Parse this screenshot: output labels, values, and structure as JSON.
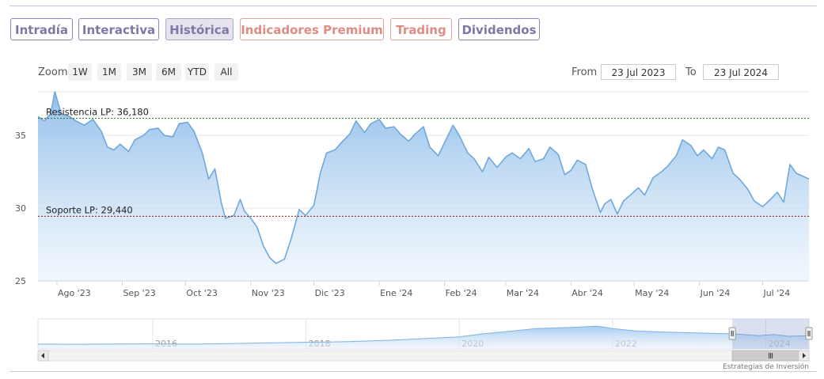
{
  "tabs": [
    {
      "label": "Intradía",
      "active": false,
      "premium": false
    },
    {
      "label": "Interactiva",
      "active": false,
      "premium": false
    },
    {
      "label": "Histórica",
      "active": true,
      "premium": false
    },
    {
      "label": "Indicadores Premium",
      "active": false,
      "premium": true
    },
    {
      "label": "Trading",
      "active": false,
      "premium": true
    },
    {
      "label": "Dividendos",
      "active": false,
      "premium": false
    }
  ],
  "toolbar": {
    "zoom_label": "Zoom",
    "zoom_buttons": [
      "1W",
      "1M",
      "3M",
      "6M",
      "YTD",
      "All"
    ],
    "from_label": "From",
    "from_value": "23 Jul 2023",
    "to_label": "To",
    "to_value": "23 Jul 2024"
  },
  "credits": "Estrategias de Inversión",
  "colors": {
    "line": "#6fa8dc",
    "area_top": "#8dbce8",
    "resistance": "#2e7d2e",
    "support": "#8b1a1a",
    "tab_border": "#8b86b8",
    "premium": "#e08c84"
  },
  "chart_data": {
    "type": "area",
    "title": "",
    "xlabel": "",
    "ylabel": "",
    "x_range": [
      "2023-07-23",
      "2024-07-23"
    ],
    "ylim": [
      25,
      38
    ],
    "y_ticks": [
      25,
      30,
      35
    ],
    "x_ticks": [
      {
        "date": "2023-08-01",
        "label": "Ago '23"
      },
      {
        "date": "2023-09-01",
        "label": "Sep '23"
      },
      {
        "date": "2023-10-01",
        "label": "Oct '23"
      },
      {
        "date": "2023-11-01",
        "label": "Nov '23"
      },
      {
        "date": "2023-12-01",
        "label": "Dic '23"
      },
      {
        "date": "2024-01-01",
        "label": "Ene '24"
      },
      {
        "date": "2024-02-01",
        "label": "Feb '24"
      },
      {
        "date": "2024-03-01",
        "label": "Mar '24"
      },
      {
        "date": "2024-04-01",
        "label": "Abr '24"
      },
      {
        "date": "2024-05-01",
        "label": "May '24"
      },
      {
        "date": "2024-06-01",
        "label": "Jun '24"
      },
      {
        "date": "2024-07-01",
        "label": "Jul '24"
      }
    ],
    "grid": true,
    "levels": [
      {
        "label": "Resistencia LP: 36,180",
        "value": 36.18,
        "style": "dashed",
        "color": "#2e7d2e"
      },
      {
        "label": "Soporte LP: 29,440",
        "value": 29.44,
        "style": "dashed",
        "color": "#8b1a1a"
      }
    ],
    "series": [
      {
        "values": [
          [
            "2023-07-23",
            36.3
          ],
          [
            "2023-07-26",
            36.0
          ],
          [
            "2023-07-29",
            36.5
          ],
          [
            "2023-07-31",
            38.0
          ],
          [
            "2023-08-03",
            36.5
          ],
          [
            "2023-08-07",
            36.3
          ],
          [
            "2023-08-10",
            36.0
          ],
          [
            "2023-08-14",
            35.7
          ],
          [
            "2023-08-18",
            36.1
          ],
          [
            "2023-08-22",
            35.3
          ],
          [
            "2023-08-25",
            34.2
          ],
          [
            "2023-08-28",
            34.0
          ],
          [
            "2023-08-31",
            34.4
          ],
          [
            "2023-09-04",
            33.9
          ],
          [
            "2023-09-07",
            34.7
          ],
          [
            "2023-09-11",
            35.0
          ],
          [
            "2023-09-14",
            35.4
          ],
          [
            "2023-09-18",
            35.5
          ],
          [
            "2023-09-21",
            35.0
          ],
          [
            "2023-09-25",
            34.9
          ],
          [
            "2023-09-28",
            35.8
          ],
          [
            "2023-10-02",
            35.9
          ],
          [
            "2023-10-05",
            35.3
          ],
          [
            "2023-10-09",
            33.8
          ],
          [
            "2023-10-12",
            32.0
          ],
          [
            "2023-10-15",
            32.7
          ],
          [
            "2023-10-18",
            30.4
          ],
          [
            "2023-10-20",
            29.3
          ],
          [
            "2023-10-24",
            29.5
          ],
          [
            "2023-10-27",
            30.6
          ],
          [
            "2023-10-29",
            29.8
          ],
          [
            "2023-11-01",
            29.3
          ],
          [
            "2023-11-04",
            28.7
          ],
          [
            "2023-11-07",
            27.4
          ],
          [
            "2023-11-10",
            26.6
          ],
          [
            "2023-11-13",
            26.2
          ],
          [
            "2023-11-17",
            26.5
          ],
          [
            "2023-11-20",
            27.8
          ],
          [
            "2023-11-24",
            29.9
          ],
          [
            "2023-11-27",
            29.5
          ],
          [
            "2023-12-01",
            30.2
          ],
          [
            "2023-12-04",
            32.4
          ],
          [
            "2023-12-07",
            33.8
          ],
          [
            "2023-12-11",
            34.0
          ],
          [
            "2023-12-14",
            34.5
          ],
          [
            "2023-12-18",
            35.1
          ],
          [
            "2023-12-21",
            36.0
          ],
          [
            "2023-12-25",
            35.2
          ],
          [
            "2023-12-28",
            35.8
          ],
          [
            "2024-01-01",
            36.1
          ],
          [
            "2024-01-04",
            35.5
          ],
          [
            "2024-01-08",
            35.6
          ],
          [
            "2024-01-11",
            35.1
          ],
          [
            "2024-01-15",
            34.6
          ],
          [
            "2024-01-18",
            35.1
          ],
          [
            "2024-01-22",
            35.6
          ],
          [
            "2024-01-25",
            34.2
          ],
          [
            "2024-01-29",
            33.6
          ],
          [
            "2024-02-01",
            34.5
          ],
          [
            "2024-02-05",
            35.7
          ],
          [
            "2024-02-08",
            35.0
          ],
          [
            "2024-02-12",
            33.8
          ],
          [
            "2024-02-15",
            33.4
          ],
          [
            "2024-02-19",
            32.5
          ],
          [
            "2024-02-22",
            33.5
          ],
          [
            "2024-02-26",
            32.8
          ],
          [
            "2024-03-01",
            33.5
          ],
          [
            "2024-03-04",
            33.8
          ],
          [
            "2024-03-08",
            33.4
          ],
          [
            "2024-03-12",
            34.1
          ],
          [
            "2024-03-15",
            33.2
          ],
          [
            "2024-03-19",
            33.4
          ],
          [
            "2024-03-22",
            34.2
          ],
          [
            "2024-03-26",
            33.7
          ],
          [
            "2024-03-29",
            32.3
          ],
          [
            "2024-04-01",
            32.6
          ],
          [
            "2024-04-04",
            33.3
          ],
          [
            "2024-04-08",
            33.0
          ],
          [
            "2024-04-11",
            31.4
          ],
          [
            "2024-04-15",
            29.7
          ],
          [
            "2024-04-17",
            30.3
          ],
          [
            "2024-04-20",
            30.6
          ],
          [
            "2024-04-23",
            29.6
          ],
          [
            "2024-04-26",
            30.5
          ],
          [
            "2024-04-30",
            31.0
          ],
          [
            "2024-05-03",
            31.4
          ],
          [
            "2024-05-06",
            30.9
          ],
          [
            "2024-05-10",
            32.1
          ],
          [
            "2024-05-14",
            32.5
          ],
          [
            "2024-05-17",
            32.9
          ],
          [
            "2024-05-21",
            33.6
          ],
          [
            "2024-05-24",
            34.7
          ],
          [
            "2024-05-28",
            34.3
          ],
          [
            "2024-05-31",
            33.6
          ],
          [
            "2024-06-03",
            34.0
          ],
          [
            "2024-06-07",
            33.4
          ],
          [
            "2024-06-10",
            34.2
          ],
          [
            "2024-06-13",
            34.0
          ],
          [
            "2024-06-17",
            32.4
          ],
          [
            "2024-06-20",
            32.0
          ],
          [
            "2024-06-24",
            31.3
          ],
          [
            "2024-06-27",
            30.5
          ],
          [
            "2024-07-01",
            30.1
          ],
          [
            "2024-07-04",
            30.5
          ],
          [
            "2024-07-08",
            31.1
          ],
          [
            "2024-07-11",
            30.4
          ],
          [
            "2024-07-14",
            33.0
          ],
          [
            "2024-07-17",
            32.4
          ],
          [
            "2024-07-20",
            32.2
          ],
          [
            "2024-07-23",
            32.0
          ]
        ]
      }
    ]
  },
  "navigator": {
    "type": "area",
    "x_range": [
      "2014-07-01",
      "2024-07-23"
    ],
    "ylim": [
      10,
      60
    ],
    "year_labels": [
      {
        "year": 2016,
        "label": "2016"
      },
      {
        "year": 2018,
        "label": "2018"
      },
      {
        "year": 2020,
        "label": "2020"
      },
      {
        "year": 2022,
        "label": "2022"
      },
      {
        "year": 2024,
        "label": "2024"
      }
    ],
    "selected_range": [
      "2023-07-23",
      "2024-07-23"
    ],
    "values": [
      [
        2014.5,
        18.0
      ],
      [
        2015.0,
        17.8
      ],
      [
        2015.5,
        18.2
      ],
      [
        2016.0,
        18.4
      ],
      [
        2016.5,
        18.0
      ],
      [
        2017.0,
        19.0
      ],
      [
        2017.5,
        20.0
      ],
      [
        2018.0,
        21.0
      ],
      [
        2018.5,
        22.0
      ],
      [
        2019.0,
        24.0
      ],
      [
        2019.5,
        27.0
      ],
      [
        2020.0,
        30.0
      ],
      [
        2020.3,
        35.0
      ],
      [
        2020.7,
        40.0
      ],
      [
        2021.0,
        44.0
      ],
      [
        2021.5,
        46.0
      ],
      [
        2021.8,
        48.0
      ],
      [
        2022.0,
        44.0
      ],
      [
        2022.3,
        40.0
      ],
      [
        2022.7,
        38.0
      ],
      [
        2023.0,
        37.0
      ],
      [
        2023.3,
        36.0
      ],
      [
        2023.6,
        35.0
      ],
      [
        2023.9,
        32.0
      ],
      [
        2024.1,
        34.0
      ],
      [
        2024.3,
        31.0
      ],
      [
        2024.55,
        32.0
      ]
    ]
  }
}
